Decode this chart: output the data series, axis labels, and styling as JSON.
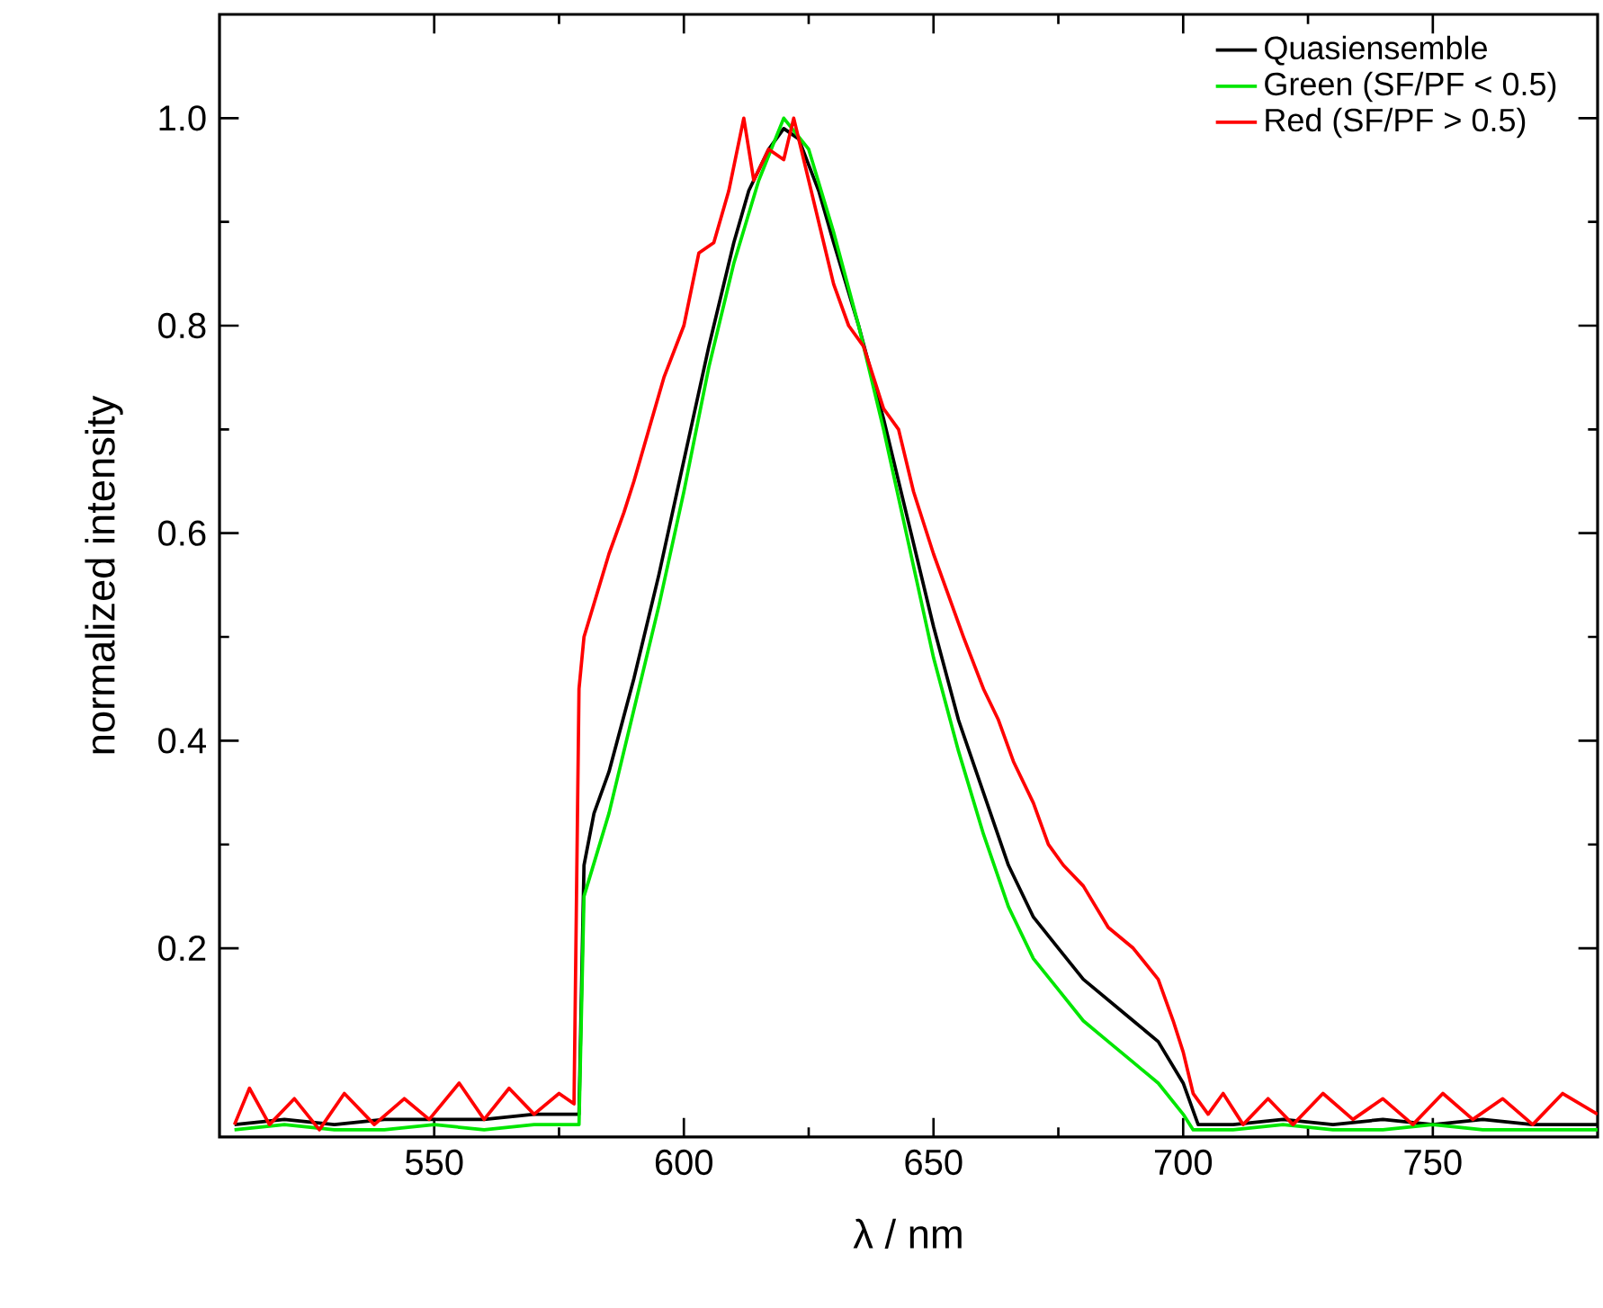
{
  "chart_data": {
    "type": "line",
    "xlabel": "λ / nm",
    "ylabel": "normalized intensity",
    "xlim": [
      507,
      783
    ],
    "ylim": [
      0.018,
      1.1
    ],
    "xticks": [
      550,
      600,
      650,
      700,
      750
    ],
    "yticks": [
      {
        "value": 0.2,
        "label": "0.2"
      },
      {
        "value": 0.4,
        "label": "0.4"
      },
      {
        "value": 0.6,
        "label": "0.6"
      },
      {
        "value": 0.8,
        "label": "0.8"
      },
      {
        "value": 1.0,
        "label": "1.0"
      }
    ],
    "legend": "top right",
    "grid": false,
    "marker": "none",
    "line_style": "solid",
    "series": [
      {
        "name": "Quasiensemble",
        "color": "#000000",
        "x": [
          510,
          520,
          530,
          540,
          550,
          560,
          570,
          577,
          579,
          580,
          582,
          585,
          590,
          595,
          600,
          605,
          610,
          613,
          617,
          620,
          623,
          627,
          630,
          635,
          640,
          645,
          650,
          655,
          660,
          665,
          670,
          675,
          680,
          685,
          690,
          695,
          700,
          703,
          710,
          720,
          730,
          740,
          750,
          760,
          770,
          783
        ],
        "values": [
          0.03,
          0.035,
          0.03,
          0.035,
          0.035,
          0.035,
          0.04,
          0.04,
          0.04,
          0.28,
          0.33,
          0.37,
          0.46,
          0.56,
          0.67,
          0.78,
          0.88,
          0.93,
          0.97,
          0.99,
          0.98,
          0.93,
          0.88,
          0.8,
          0.71,
          0.61,
          0.51,
          0.42,
          0.35,
          0.28,
          0.23,
          0.2,
          0.17,
          0.15,
          0.13,
          0.11,
          0.07,
          0.03,
          0.03,
          0.035,
          0.03,
          0.035,
          0.03,
          0.035,
          0.03,
          0.03
        ]
      },
      {
        "name": "Green (SF/PF < 0.5)",
        "color": "#00e600",
        "x": [
          510,
          520,
          530,
          540,
          550,
          560,
          570,
          577,
          579,
          580,
          585,
          590,
          595,
          600,
          605,
          610,
          615,
          620,
          625,
          630,
          635,
          640,
          645,
          650,
          655,
          660,
          665,
          670,
          675,
          680,
          685,
          690,
          695,
          700,
          702,
          710,
          720,
          730,
          740,
          750,
          760,
          770,
          783
        ],
        "values": [
          0.025,
          0.03,
          0.025,
          0.025,
          0.03,
          0.025,
          0.03,
          0.03,
          0.03,
          0.25,
          0.33,
          0.43,
          0.53,
          0.64,
          0.76,
          0.86,
          0.94,
          1.0,
          0.97,
          0.89,
          0.8,
          0.7,
          0.59,
          0.48,
          0.39,
          0.31,
          0.24,
          0.19,
          0.16,
          0.13,
          0.11,
          0.09,
          0.07,
          0.04,
          0.025,
          0.025,
          0.03,
          0.025,
          0.025,
          0.03,
          0.025,
          0.025,
          0.025
        ]
      },
      {
        "name": "Red (SF/PF > 0.5)",
        "color": "#ff0000",
        "x": [
          510,
          513,
          517,
          522,
          527,
          532,
          538,
          544,
          549,
          555,
          560,
          565,
          570,
          575,
          578,
          579,
          580,
          585,
          588,
          590,
          593,
          596,
          600,
          603,
          606,
          609,
          612,
          614,
          617,
          620,
          622,
          625,
          628,
          630,
          633,
          636,
          640,
          643,
          646,
          650,
          653,
          656,
          660,
          663,
          666,
          670,
          673,
          676,
          680,
          685,
          690,
          695,
          698,
          700,
          702,
          705,
          708,
          712,
          717,
          722,
          728,
          734,
          740,
          746,
          752,
          758,
          764,
          770,
          776,
          783
        ],
        "values": [
          0.03,
          0.065,
          0.03,
          0.055,
          0.025,
          0.06,
          0.03,
          0.055,
          0.035,
          0.07,
          0.035,
          0.065,
          0.04,
          0.06,
          0.05,
          0.45,
          0.5,
          0.58,
          0.62,
          0.65,
          0.7,
          0.75,
          0.8,
          0.87,
          0.88,
          0.93,
          1.0,
          0.94,
          0.97,
          0.96,
          1.0,
          0.94,
          0.88,
          0.84,
          0.8,
          0.78,
          0.72,
          0.7,
          0.64,
          0.58,
          0.54,
          0.5,
          0.45,
          0.42,
          0.38,
          0.34,
          0.3,
          0.28,
          0.26,
          0.22,
          0.2,
          0.17,
          0.13,
          0.1,
          0.06,
          0.04,
          0.06,
          0.03,
          0.055,
          0.03,
          0.06,
          0.035,
          0.055,
          0.03,
          0.06,
          0.035,
          0.055,
          0.03,
          0.06,
          0.04
        ]
      }
    ]
  }
}
